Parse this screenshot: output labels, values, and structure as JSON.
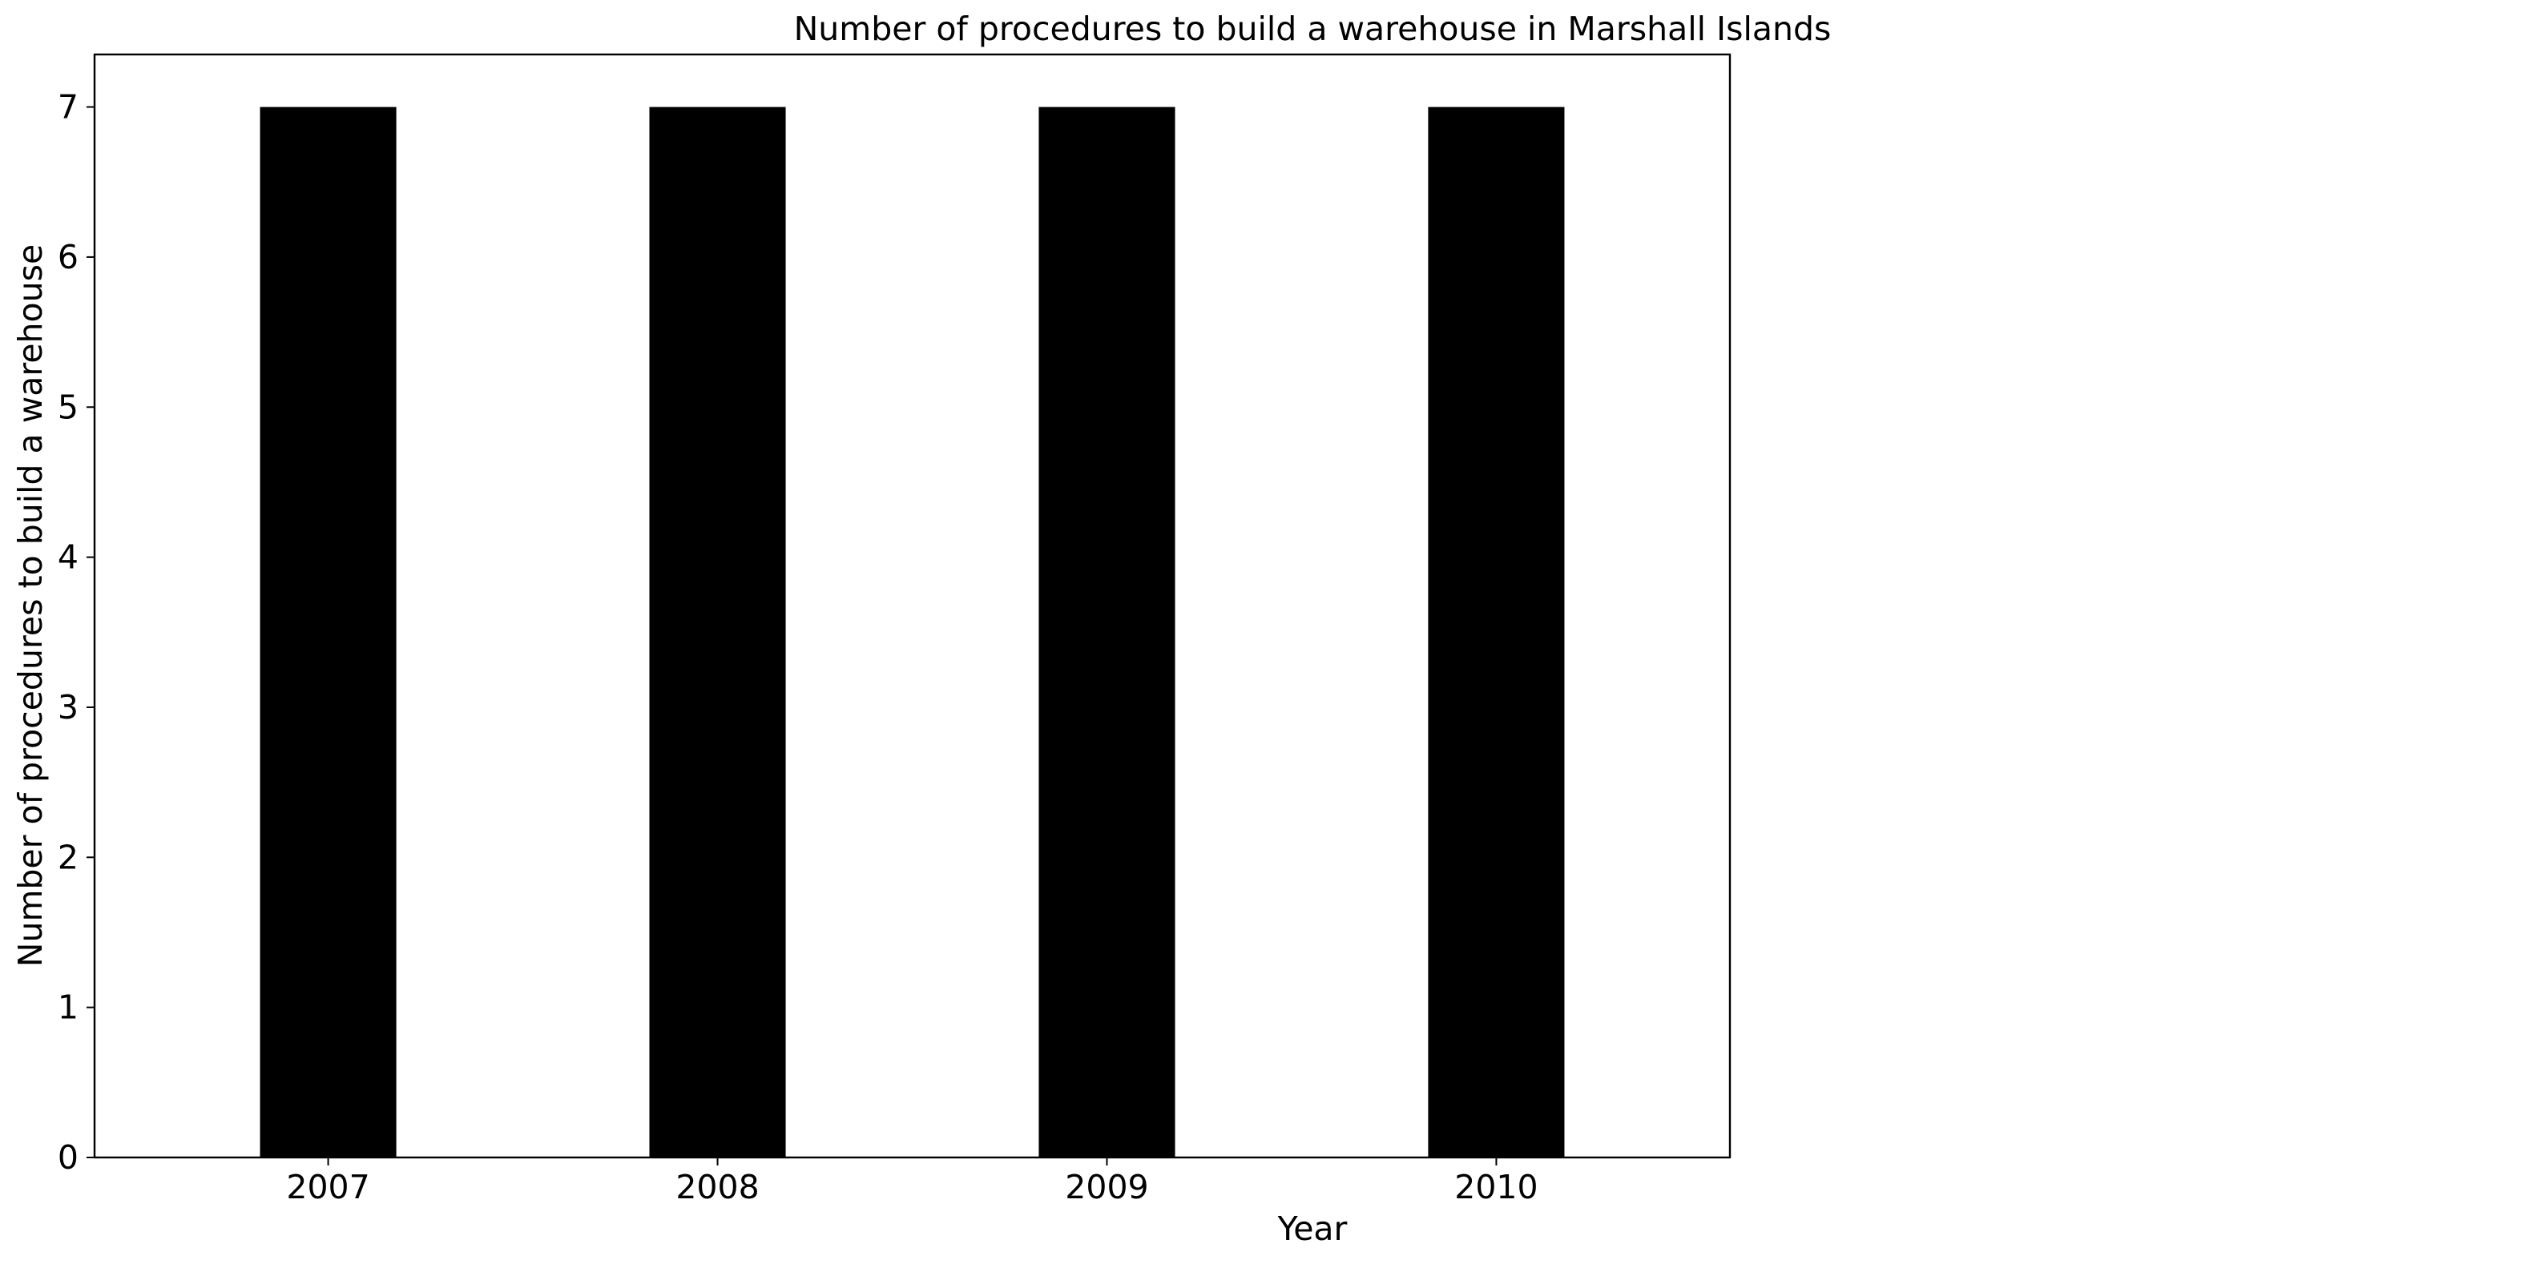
{
  "chart_data": {
    "type": "bar",
    "title": "Number of procedures to build a warehouse in Marshall Islands",
    "xlabel": "Year",
    "ylabel": "Number of procedures to build a warehouse",
    "categories": [
      "2007",
      "2008",
      "2009",
      "2010"
    ],
    "values": [
      7,
      7,
      7,
      7
    ],
    "ylim": [
      0,
      7.35
    ],
    "yticks": [
      0,
      1,
      2,
      3,
      4,
      5,
      6,
      7
    ],
    "grid": false,
    "legend": "none",
    "bar_color": "#000000"
  }
}
